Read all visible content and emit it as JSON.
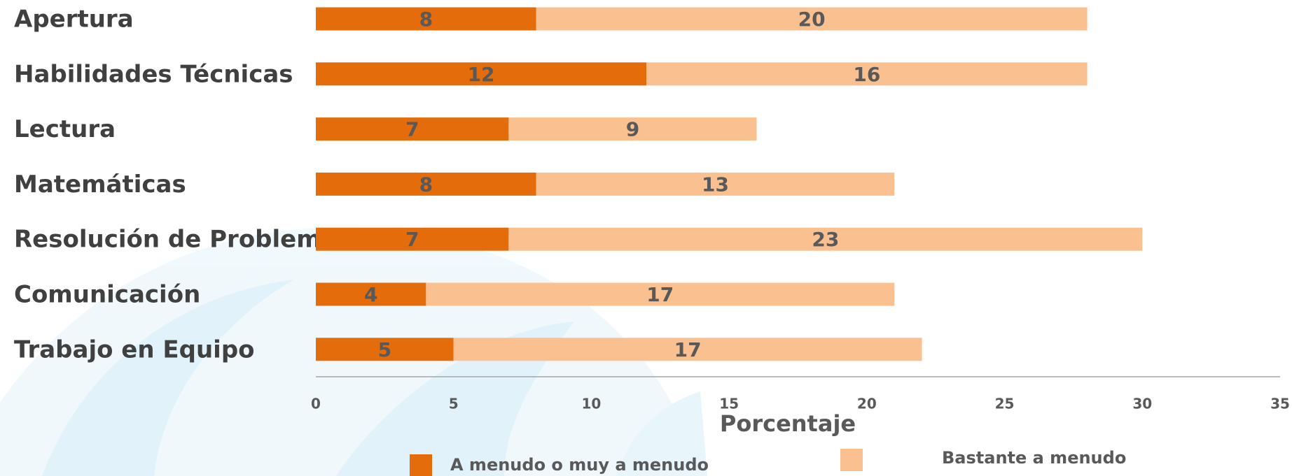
{
  "chart_data": {
    "type": "bar",
    "orientation": "horizontal",
    "stacked": true,
    "categories": [
      "Apertura",
      "Habilidades Técnicas",
      "Lectura",
      "Matemáticas",
      "Resolución de Problemas",
      "Comunicación",
      "Trabajo en Equipo"
    ],
    "series": [
      {
        "name": "A menudo o muy a menudo",
        "color": "#e46c0a",
        "values": [
          8,
          12,
          7,
          8,
          7,
          4,
          5
        ]
      },
      {
        "name": "Bastante a menudo",
        "color": "#fac090",
        "values": [
          20,
          16,
          9,
          13,
          23,
          17,
          17
        ]
      }
    ],
    "x_label": "Porcentaje",
    "xlim": [
      0,
      35
    ],
    "xticks": [
      0,
      5,
      10,
      15,
      20,
      25,
      30,
      35
    ],
    "legend": "bottom"
  }
}
